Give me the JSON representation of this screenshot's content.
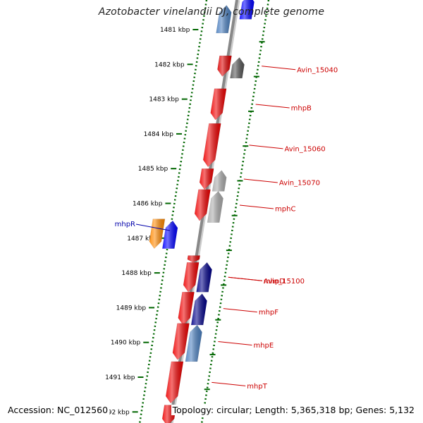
{
  "title": "Azotobacter vinelandii DJ, complete genome",
  "accession": "Accession: NC_012560",
  "topology": "Topology: circular; Length: 5,365,318 bp; Genes: 5,132",
  "colors": {
    "forward_label": "#cc0000",
    "reverse_label": "#0000aa",
    "ruler_tick": "#006600",
    "backbone": "#888888"
  },
  "ruler": [
    {
      "label": "1481 kbp",
      "kbp": 1481
    },
    {
      "label": "1482 kbp",
      "kbp": 1482
    },
    {
      "label": "1483 kbp",
      "kbp": 1483
    },
    {
      "label": "1484 kbp",
      "kbp": 1484
    },
    {
      "label": "1485 kbp",
      "kbp": 1485
    },
    {
      "label": "1486 kbp",
      "kbp": 1486
    },
    {
      "label": "1487 kbp",
      "kbp": 1487
    },
    {
      "label": "1488 kbp",
      "kbp": 1488
    },
    {
      "label": "1489 kbp",
      "kbp": 1489
    },
    {
      "label": "1490 kbp",
      "kbp": 1490
    },
    {
      "label": "1491 kbp",
      "kbp": 1491
    },
    {
      "label": "1492 kbp",
      "kbp": 1492
    }
  ],
  "genes": [
    {
      "label": "",
      "start": 1480.0,
      "end": 1480.7,
      "strand": "+",
      "color": "#0000ff"
    },
    {
      "label": "",
      "start": 1480.3,
      "end": 1481.1,
      "strand": "+",
      "color": "#4a7fbf"
    },
    {
      "label": "Avin_15040",
      "start": 1481.75,
      "end": 1482.35,
      "strand": "-",
      "color": "#dd0000"
    },
    {
      "label": "",
      "start": 1481.8,
      "end": 1482.4,
      "strand": "+",
      "color": "#555555"
    },
    {
      "label": "mhpB",
      "start": 1482.7,
      "end": 1483.6,
      "strand": "-",
      "color": "#ee0000"
    },
    {
      "label": "Avin_15060",
      "start": 1483.7,
      "end": 1484.95,
      "strand": "-",
      "color": "#ee0000"
    },
    {
      "label": "Avin_15070",
      "start": 1485.0,
      "end": 1485.6,
      "strand": "-",
      "color": "#ee0000"
    },
    {
      "label": "",
      "start": 1485.05,
      "end": 1485.65,
      "strand": "+",
      "color": "#aaaaaa"
    },
    {
      "label": "mphC",
      "start": 1485.6,
      "end": 1486.5,
      "strand": "-",
      "color": "#ee0000"
    },
    {
      "label": "",
      "start": 1485.65,
      "end": 1486.55,
      "strand": "+",
      "color": "#aaaaaa"
    },
    {
      "label": "mhpR",
      "start": 1486.45,
      "end": 1487.3,
      "strand": "-",
      "color": "#ff8800"
    },
    {
      "label": "",
      "start": 1486.5,
      "end": 1487.3,
      "strand": "+",
      "color": "#0000ff"
    },
    {
      "label": "",
      "start": 1487.5,
      "end": 1487.7,
      "strand": "-",
      "color": "#dd0000"
    },
    {
      "label": "Avin_15100",
      "start": 1487.7,
      "end": 1488.55,
      "strand": "-",
      "color": "#ee0000"
    },
    {
      "label": "mhpD",
      "start": 1487.7,
      "end": 1488.55,
      "strand": "+",
      "color": "#000088"
    },
    {
      "label": "mhpF",
      "start": 1488.55,
      "end": 1489.5,
      "strand": "-",
      "color": "#ee0000"
    },
    {
      "label": "",
      "start": 1488.6,
      "end": 1489.5,
      "strand": "+",
      "color": "#000088"
    },
    {
      "label": "mhpE",
      "start": 1489.45,
      "end": 1490.5,
      "strand": "-",
      "color": "#ee0000"
    },
    {
      "label": "",
      "start": 1489.5,
      "end": 1490.55,
      "strand": "+",
      "color": "#4a7fbf"
    },
    {
      "label": "mhpT",
      "start": 1490.55,
      "end": 1491.75,
      "strand": "-",
      "color": "#ee0000"
    },
    {
      "label": "",
      "start": 1491.8,
      "end": 1492.4,
      "strand": "-",
      "color": "#ee0000"
    }
  ]
}
